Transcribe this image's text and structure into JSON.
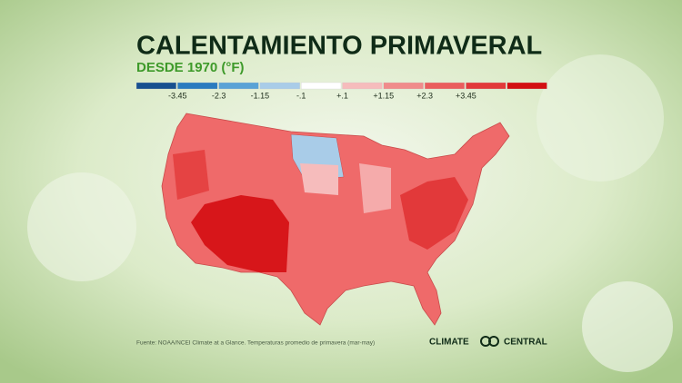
{
  "header": {
    "title": "CALENTAMIENTO PRIMAVERAL",
    "subtitle": "DESDE 1970 (°F)"
  },
  "legend": {
    "colors": [
      "#17508f",
      "#2a7bbf",
      "#5aa2d6",
      "#a9cce8",
      "#ffffff",
      "#f6bcbc",
      "#f08b8b",
      "#ea5d5d",
      "#e2393a",
      "#d30f12"
    ],
    "labels": [
      "-3.45",
      "-2.3",
      "-1.15",
      "-.1",
      "+.1",
      "+1.15",
      "+2.3",
      "+3.45"
    ]
  },
  "footer": {
    "source": "Fuente: NOAA/NCEI Climate at a Glance. Temperaturas promedio de primavera (mar-may)",
    "logo_left": "CLIMATE",
    "logo_right": "CENTRAL"
  }
}
